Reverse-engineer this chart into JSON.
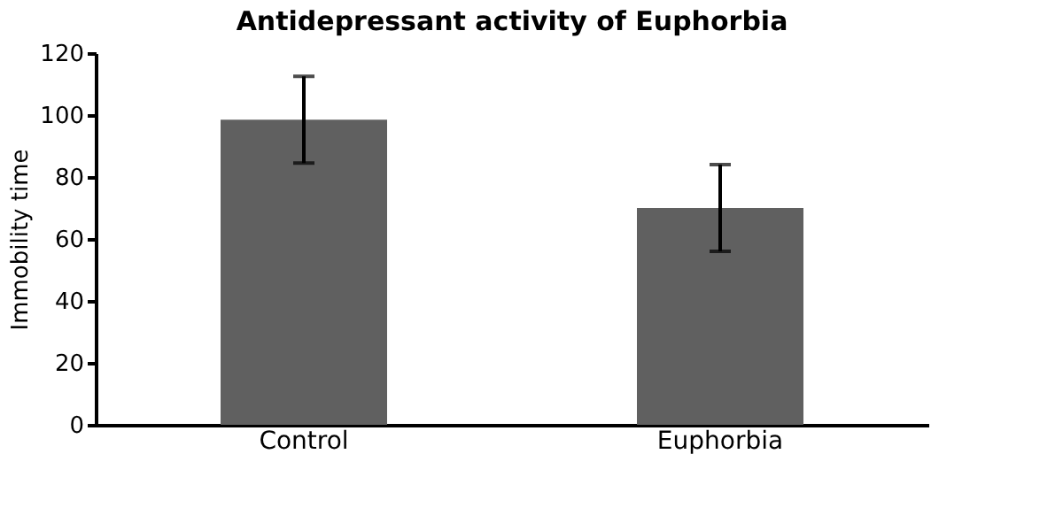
{
  "chart_data": {
    "type": "bar",
    "title": "Antidepressant activity of Euphorbia",
    "ylabel": "Immobility time",
    "categories": [
      "Control",
      "Euphorbia"
    ],
    "values": [
      98.5,
      70
    ],
    "errors": [
      14,
      14
    ],
    "color": "#606060",
    "ylim": [
      0,
      120
    ],
    "yticks": [
      0,
      20,
      40,
      60,
      80,
      100,
      120
    ],
    "grid": false
  }
}
